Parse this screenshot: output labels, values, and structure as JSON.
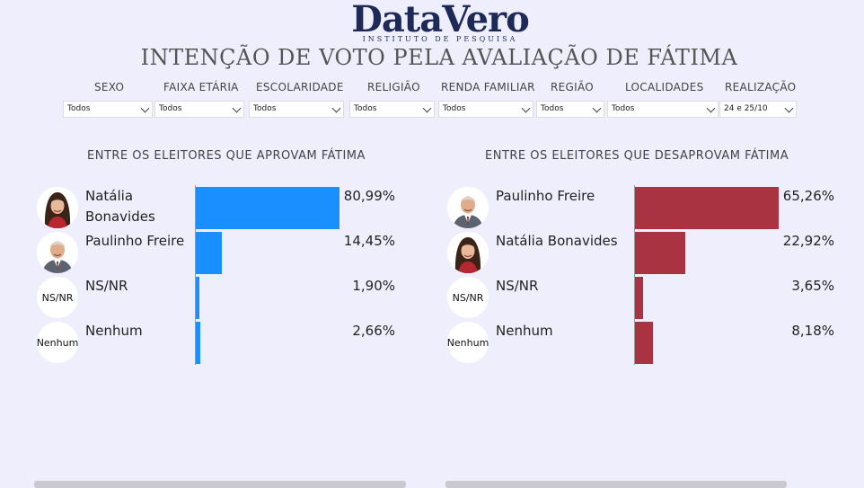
{
  "logo": {
    "name": "DataVero",
    "tagline": "INSTITUTO DE PESQUISA"
  },
  "title": "INTENÇÃO DE VOTO PELA AVALIAÇÃO DE FÁTIMA",
  "filters": [
    {
      "label": "SEXO",
      "value": "Todos"
    },
    {
      "label": "FAIXA ETÁRIA",
      "value": "Todos"
    },
    {
      "label": "ESCOLARIDADE",
      "value": "Todos"
    },
    {
      "label": "RELIGIÃO",
      "value": "Todos"
    },
    {
      "label": "RENDA FAMILIAR",
      "value": "Todos"
    },
    {
      "label": "REGIÃO",
      "value": "Todos"
    },
    {
      "label": "LOCALIDADES",
      "value": "Todos"
    },
    {
      "label": "REALIZAÇÃO",
      "value": "24 e 25/10"
    }
  ],
  "colors": {
    "approve": "#1a8fff",
    "disapprove": "#a93340",
    "background": "#efeefc"
  },
  "chart_data": [
    {
      "type": "bar",
      "orientation": "horizontal",
      "title": "ENTRE OS ELEITORES QUE APROVAM FÁTIMA",
      "categories": [
        "Natália Bonavides",
        "Paulinho Freire",
        "NS/NR",
        "Nenhum"
      ],
      "values": [
        80.99,
        14.45,
        1.9,
        2.66
      ],
      "labels": [
        "80,99%",
        "14,45%",
        "1,90%",
        "2,66%"
      ],
      "avatars": [
        "photo-natalia",
        "photo-paulinho",
        "NS/NR",
        "Nenhum"
      ],
      "color": "#1a8fff",
      "xlim": [
        0,
        80.99
      ],
      "legend": "none",
      "grid": false
    },
    {
      "type": "bar",
      "orientation": "horizontal",
      "title": "ENTRE OS ELEITORES QUE DESAPROVAM FÁTIMA",
      "categories": [
        "Paulinho Freire",
        "Natália Bonavides",
        "NS/NR",
        "Nenhum"
      ],
      "values": [
        65.26,
        22.92,
        3.65,
        8.18
      ],
      "labels": [
        "65,26%",
        "22,92%",
        "3,65%",
        "8,18%"
      ],
      "avatars": [
        "photo-paulinho",
        "photo-natalia",
        "NS/NR",
        "Nenhum"
      ],
      "color": "#a93340",
      "xlim": [
        0,
        65.26
      ],
      "legend": "none",
      "grid": false
    }
  ]
}
